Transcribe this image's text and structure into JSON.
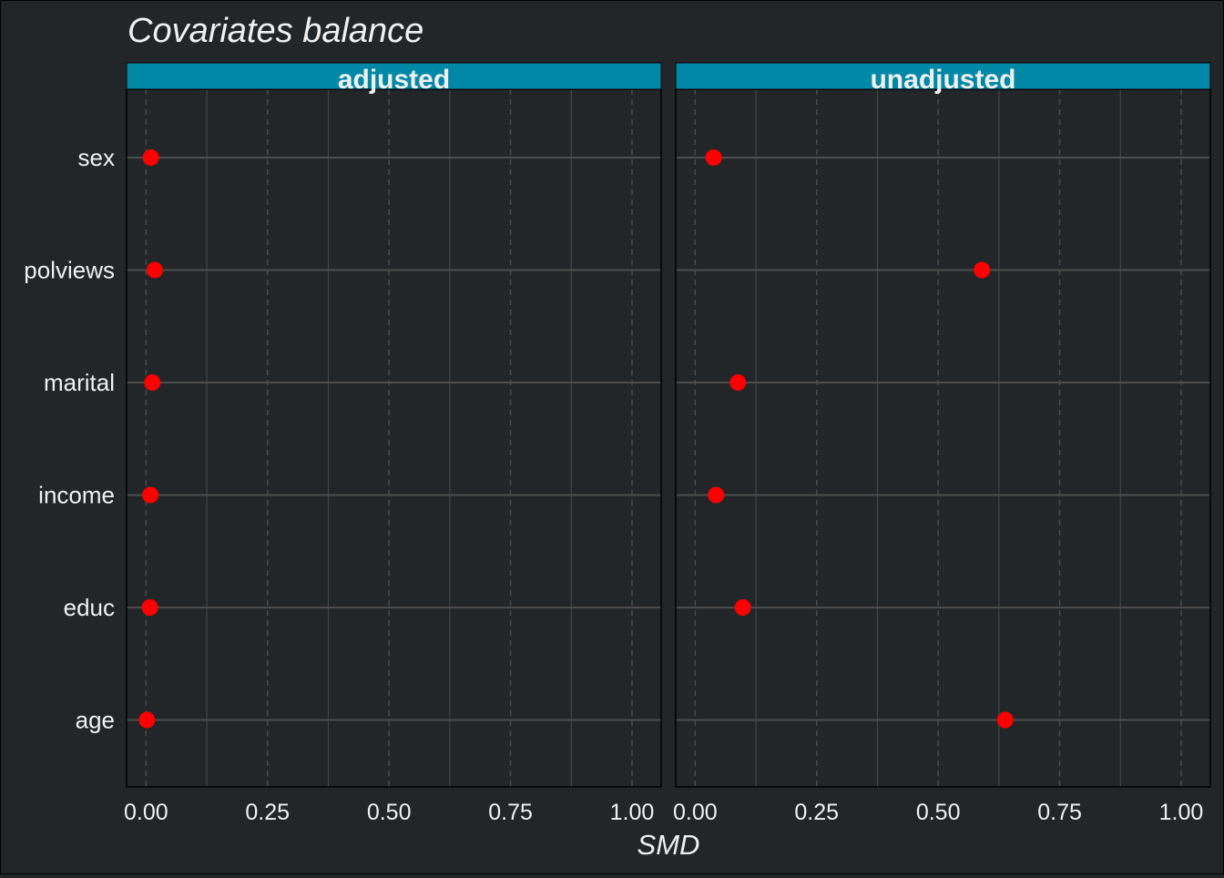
{
  "chart_data": {
    "type": "scatter",
    "title": "Covariates balance",
    "xlabel": "SMD",
    "ylabel": "",
    "xlim": [
      -0.04,
      1.06
    ],
    "x_ticks": [
      "0.00",
      "0.25",
      "0.50",
      "0.75",
      "1.00"
    ],
    "x_tick_values": [
      0,
      0.25,
      0.5,
      0.75,
      1.0
    ],
    "categories": [
      "sex",
      "polviews",
      "marital",
      "income",
      "educ",
      "age"
    ],
    "grid": true,
    "panels": [
      {
        "name": "adjusted",
        "values": [
          0.01,
          0.018,
          0.013,
          0.009,
          0.008,
          0.002
        ]
      },
      {
        "name": "unadjusted",
        "values": [
          0.038,
          0.59,
          0.088,
          0.043,
          0.098,
          0.638
        ]
      }
    ],
    "colors": {
      "background": "#222629",
      "strip": "#0088A6",
      "point": "#FF0000",
      "text": "#F0F0F0",
      "grid_major_y": "#4D4D4D",
      "grid_x": "#4A4A4A"
    }
  }
}
